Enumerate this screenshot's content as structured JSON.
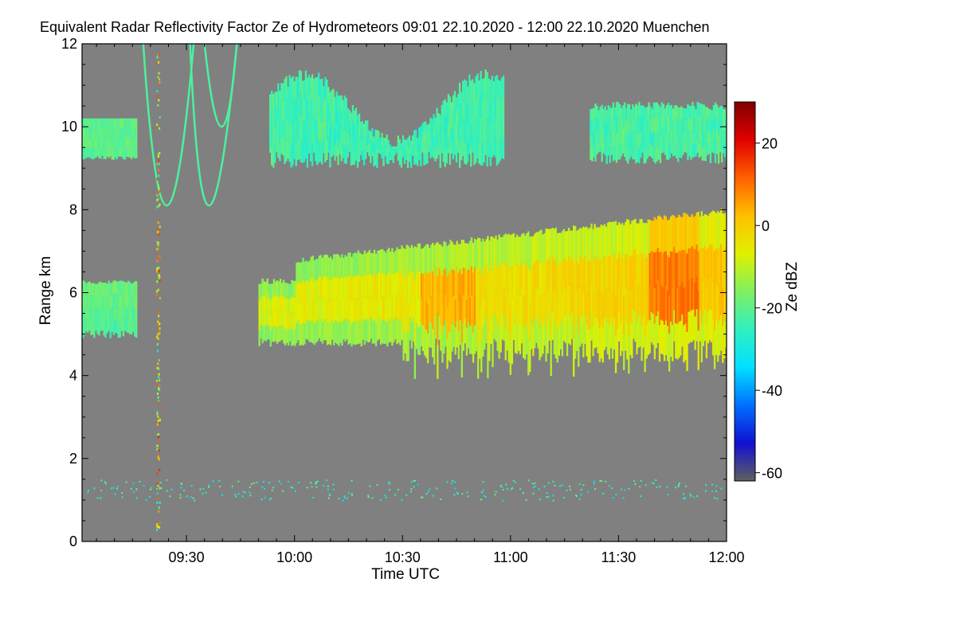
{
  "chart_data": {
    "type": "heatmap",
    "title": "Equivalent Radar Reflectivity Factor Ze of Hydrometeors   09:01 22.10.2020 - 12:00 22.10.2020 Muenchen",
    "xlabel": "Time UTC",
    "ylabel": "Range km",
    "x_range": [
      "09:01",
      "12:00"
    ],
    "y_range": [
      0,
      12
    ],
    "x_ticks": [
      {
        "label": "09:30",
        "minutes": 30
      },
      {
        "label": "10:00",
        "minutes": 60
      },
      {
        "label": "10:30",
        "minutes": 90
      },
      {
        "label": "11:00",
        "minutes": 120
      },
      {
        "label": "11:30",
        "minutes": 150
      },
      {
        "label": "12:00",
        "minutes": 180
      }
    ],
    "y_ticks": [
      0,
      2,
      4,
      6,
      8,
      10,
      12
    ],
    "colorbar": {
      "label": "Ze dBZ",
      "range": [
        -62,
        30
      ],
      "ticks": [
        -60,
        -40,
        -20,
        0,
        20
      ],
      "colors": [
        "#606060",
        "#1010d0",
        "#0070ff",
        "#00e0ff",
        "#30f0c0",
        "#80f060",
        "#e0f000",
        "#ffc000",
        "#ff6000",
        "#e00000",
        "#800000"
      ]
    },
    "background_color": "#808080",
    "features": [
      {
        "name": "ice cloud upper layer",
        "t_start": 1,
        "t_end": 180,
        "range_km": [
          8.8,
          11.7
        ],
        "ze_dbz": [
          -30,
          -15
        ]
      },
      {
        "name": "precipitating stratiform layer",
        "t_start": 1,
        "t_end": 180,
        "range_km": [
          4.0,
          7.9
        ],
        "ze_dbz": [
          -25,
          10
        ]
      },
      {
        "name": "near-surface echoes",
        "t_start": 1,
        "t_end": 180,
        "range_km": [
          0.8,
          1.6
        ],
        "ze_dbz": [
          -35,
          -15
        ]
      }
    ]
  }
}
